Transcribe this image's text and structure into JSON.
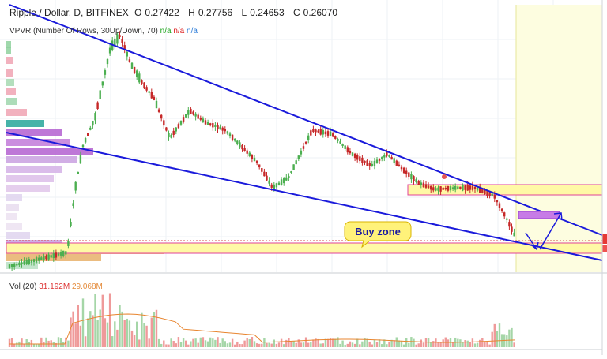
{
  "header": {
    "symbol": "Ripple / Dollar, D, BITFINEX",
    "open_label": "O",
    "open": "0.27422",
    "high_label": "H",
    "high": "0.27756",
    "low_label": "L",
    "low": "0.24653",
    "close_label": "C",
    "close": "0.26070"
  },
  "vpvr": {
    "label": "VPVR (Number Of Rows, 30",
    "label_tail": "Up/Down, 70)",
    "na1": "n/a",
    "na2": "n/a",
    "na3": "n/a"
  },
  "volume": {
    "label": "Vol (20)",
    "v1": "31.192M",
    "v2": "29.068M"
  },
  "annotation": {
    "buy_zone": "Buy zone"
  },
  "colors": {
    "up": "#4caf50",
    "down": "#c62828",
    "trendline": "#1a1adb",
    "zone_fill": "#fff9a6",
    "zone_edge": "#e0429a",
    "projection": "#9a3fd0",
    "vol_up": "#a5d6a7",
    "vol_down": "#ef9a9a",
    "vol_ma": "#e8852f"
  },
  "chart_data": {
    "type": "candlestick",
    "title": "Ripple / Dollar, D, BITFINEX",
    "ohlc_last": {
      "open": 0.27422,
      "high": 0.27756,
      "low": 0.24653,
      "close": 0.2607
    },
    "volume_ma_20": {
      "value_1": "31.192M",
      "value_2": "29.068M"
    },
    "annotations": [
      "Buy zone"
    ]
  }
}
